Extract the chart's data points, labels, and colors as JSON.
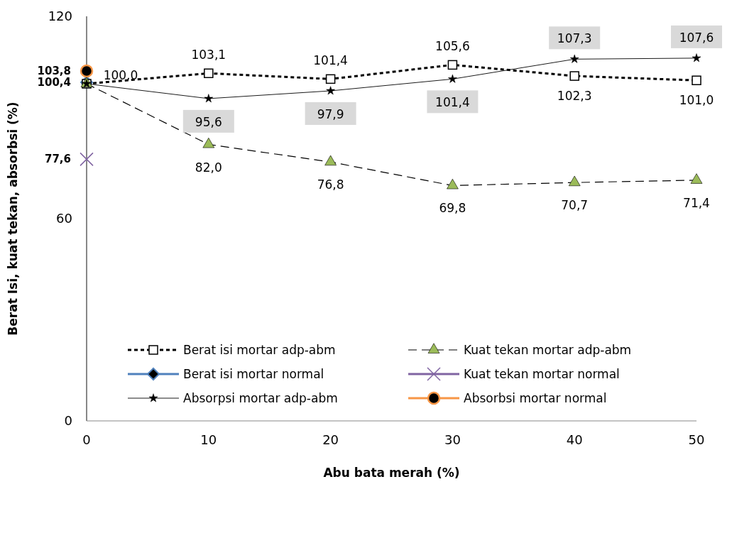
{
  "chart_data": {
    "type": "line",
    "xlabel": "Abu  bata merah (%)",
    "ylabel": "Berat Isi, kuat tekan, absorbsi (%)",
    "x": [
      0,
      10,
      20,
      30,
      40,
      50
    ],
    "xlim": [
      0,
      50
    ],
    "xticks": [
      0,
      10,
      20,
      30,
      40,
      50
    ],
    "ylim": [
      0,
      120
    ],
    "yticks": [
      0,
      60,
      120
    ],
    "legend": "bottom",
    "series": [
      {
        "name": "Berat isi mortar adp-abm",
        "color": "#000000",
        "marker": "square",
        "line_style": "dashed",
        "values": [
          100.0,
          103.1,
          101.4,
          105.6,
          102.3,
          101.0
        ],
        "value_labels": [
          "100,0",
          "103,1",
          "101,4",
          "105,6",
          "102,3",
          "101,0"
        ]
      },
      {
        "name": "Kuat tekan mortar adp-abm",
        "color": "#000000",
        "marker": "triangle",
        "line_style": "dashed",
        "values": [
          100.0,
          82.0,
          76.8,
          69.8,
          70.7,
          71.4
        ],
        "value_labels": [
          null,
          "82,0",
          "76,8",
          "69,8",
          "70,7",
          "71,4"
        ]
      },
      {
        "name": "Berat isi mortar normal",
        "color": "#4f81bd",
        "marker": "diamond",
        "values": [
          100.4,
          null,
          null,
          null,
          null,
          null
        ],
        "value_labels": [
          "100,4",
          null,
          null,
          null,
          null,
          null
        ]
      },
      {
        "name": "Kuat tekan mortar normal",
        "color": "#8064a2",
        "marker": "cross",
        "values": [
          77.6,
          null,
          null,
          null,
          null,
          null
        ],
        "value_labels": [
          "77,6",
          null,
          null,
          null,
          null,
          null
        ]
      },
      {
        "name": "Absorpsi mortar adp-abm",
        "color": "#000000",
        "marker": "star",
        "line_style": "solid",
        "values": [
          100.0,
          95.6,
          97.9,
          101.4,
          107.3,
          107.6
        ],
        "value_labels": [
          null,
          "95,6",
          "97,9",
          "101,4",
          "107,3",
          "107,6"
        ]
      },
      {
        "name": "Absorbsi mortar normal",
        "color": "#f79646",
        "marker": "circle",
        "values": [
          103.8,
          null,
          null,
          null,
          null,
          null
        ],
        "value_labels": [
          "103,8",
          null,
          null,
          null,
          null,
          null
        ]
      }
    ]
  }
}
